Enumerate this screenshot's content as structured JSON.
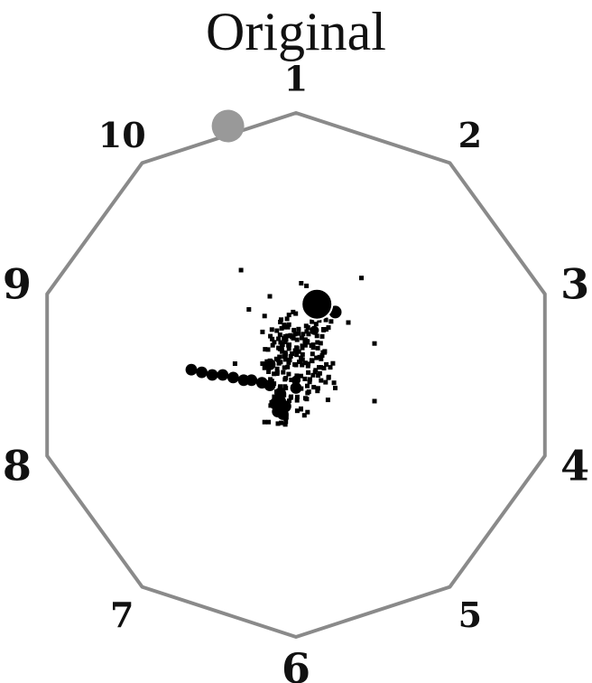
{
  "chart_data": {
    "type": "scatter",
    "title": "Original",
    "anchors": [
      "1",
      "2",
      "3",
      "4",
      "5",
      "6",
      "7",
      "8",
      "9",
      "10"
    ],
    "colors": {
      "outline": "#8a8a8a",
      "points": "#000000",
      "centroid": "#000000",
      "highlight": "#999999"
    },
    "highlight": {
      "x": -0.26,
      "y": 0.95
    },
    "centroid": {
      "x": 0.08,
      "y": 0.27
    },
    "blobs": [
      {
        "x": -0.4,
        "y": 0.02,
        "r": 2
      },
      {
        "x": -0.36,
        "y": 0.01,
        "r": 2
      },
      {
        "x": -0.32,
        "y": 0.0,
        "r": 2
      },
      {
        "x": -0.28,
        "y": 0.0,
        "r": 2
      },
      {
        "x": -0.24,
        "y": -0.01,
        "r": 2
      },
      {
        "x": -0.2,
        "y": -0.02,
        "r": 2
      },
      {
        "x": -0.17,
        "y": -0.02,
        "r": 2
      },
      {
        "x": -0.13,
        "y": -0.03,
        "r": 2
      },
      {
        "x": -0.1,
        "y": -0.04,
        "r": 2
      },
      {
        "x": -0.1,
        "y": 0.04,
        "r": 2
      },
      {
        "x": -0.06,
        "y": -0.07,
        "r": 2
      },
      {
        "x": -0.06,
        "y": -0.1,
        "r": 2
      },
      {
        "x": -0.08,
        "y": -0.11,
        "r": 2
      },
      {
        "x": -0.04,
        "y": -0.12,
        "r": 2
      },
      {
        "x": -0.07,
        "y": -0.14,
        "r": 2
      },
      {
        "x": -0.05,
        "y": -0.15,
        "r": 2
      },
      {
        "x": 0.0,
        "y": -0.05,
        "r": 2
      },
      {
        "x": 0.0,
        "y": -0.02,
        "r": 1.6
      },
      {
        "x": 0.07,
        "y": 0.17,
        "r": 1.6
      },
      {
        "x": 0.15,
        "y": 0.24,
        "r": 2.2
      }
    ],
    "points": [
      {
        "x": -0.233,
        "y": 0.043
      },
      {
        "x": -0.128,
        "y": 0.164
      },
      {
        "x": -0.12,
        "y": 0.225
      },
      {
        "x": -0.092,
        "y": 0.04
      },
      {
        "x": -0.105,
        "y": -0.18
      },
      {
        "x": -0.12,
        "y": -0.18
      },
      {
        "x": -0.093,
        "y": -0.105
      },
      {
        "x": -0.007,
        "y": -0.02
      },
      {
        "x": 0.019,
        "y": -0.131
      },
      {
        "x": 0.053,
        "y": -0.017
      },
      {
        "x": 0.002,
        "y": 0.077
      },
      {
        "x": -0.027,
        "y": 0.1
      },
      {
        "x": -0.027,
        "y": 0.192
      },
      {
        "x": 0.1,
        "y": 0.147
      },
      {
        "x": 0.059,
        "y": 0.112
      },
      {
        "x": 0.0,
        "y": 0.038
      },
      {
        "x": -0.057,
        "y": -0.074
      },
      {
        "x": -0.06,
        "y": -0.121
      },
      {
        "x": -0.045,
        "y": 0.182
      },
      {
        "x": -0.098,
        "y": 0.148
      },
      {
        "x": -0.072,
        "y": 0.023
      },
      {
        "x": -0.075,
        "y": 0.061
      },
      {
        "x": -0.096,
        "y": -0.025
      },
      {
        "x": 0.024,
        "y": 0.108
      },
      {
        "x": -0.04,
        "y": 0.059
      },
      {
        "x": 0.068,
        "y": -0.047
      },
      {
        "x": 0.004,
        "y": -0.097
      },
      {
        "x": -0.019,
        "y": -0.083
      },
      {
        "x": 0.077,
        "y": 0.194
      },
      {
        "x": -0.031,
        "y": 0.182
      },
      {
        "x": -0.097,
        "y": -0.117
      },
      {
        "x": 0.122,
        "y": -0.095
      },
      {
        "x": -0.032,
        "y": 0.03
      },
      {
        "x": 0.065,
        "y": 0.115
      },
      {
        "x": -0.049,
        "y": 0.01
      },
      {
        "x": -0.029,
        "y": 0.113
      },
      {
        "x": 0.141,
        "y": 0.044
      },
      {
        "x": 0.041,
        "y": 0.166
      },
      {
        "x": -0.02,
        "y": 0.071
      },
      {
        "x": 0.037,
        "y": 0.127
      },
      {
        "x": 0.032,
        "y": -0.154
      },
      {
        "x": -0.059,
        "y": 0.124
      },
      {
        "x": -0.041,
        "y": -0.189
      },
      {
        "x": 0.109,
        "y": 0.086
      },
      {
        "x": 0.054,
        "y": 0.244
      },
      {
        "x": -0.039,
        "y": 0.185
      },
      {
        "x": 0.024,
        "y": 0.103
      },
      {
        "x": -0.099,
        "y": 0.054
      },
      {
        "x": 0.046,
        "y": 0.181
      },
      {
        "x": 0.124,
        "y": -0.011
      },
      {
        "x": -0.051,
        "y": 0.115
      },
      {
        "x": 0.036,
        "y": 0.113
      },
      {
        "x": -0.068,
        "y": 0.057
      },
      {
        "x": 0.082,
        "y": -0.061
      },
      {
        "x": -0.09,
        "y": -0.112
      },
      {
        "x": -0.003,
        "y": 0.156
      },
      {
        "x": 0.005,
        "y": -0.084
      },
      {
        "x": -0.026,
        "y": 0.115
      },
      {
        "x": 0.041,
        "y": -0.092
      },
      {
        "x": 0.061,
        "y": 0.203
      },
      {
        "x": -0.028,
        "y": 0.047
      },
      {
        "x": -0.05,
        "y": -0.066
      },
      {
        "x": -0.052,
        "y": -0.114
      },
      {
        "x": 0.107,
        "y": 0.026
      },
      {
        "x": 0.019,
        "y": 0.065
      },
      {
        "x": 0.003,
        "y": -0.003
      },
      {
        "x": -0.01,
        "y": 0.14
      },
      {
        "x": -0.053,
        "y": 0.089
      },
      {
        "x": -0.071,
        "y": 0.01
      },
      {
        "x": -0.098,
        "y": -0.017
      },
      {
        "x": -0.054,
        "y": 0.097
      },
      {
        "x": 0.004,
        "y": 0.101
      },
      {
        "x": 0.078,
        "y": 0.065
      },
      {
        "x": 0.085,
        "y": -0.002
      },
      {
        "x": -0.015,
        "y": 0.145
      },
      {
        "x": 0.023,
        "y": 0.038
      },
      {
        "x": -0.118,
        "y": 0.098
      },
      {
        "x": 0.044,
        "y": -0.069
      },
      {
        "x": -0.061,
        "y": -0.049
      },
      {
        "x": -0.06,
        "y": 0.202
      },
      {
        "x": 0.096,
        "y": 0.061
      },
      {
        "x": 0.06,
        "y": 0.056
      },
      {
        "x": -0.039,
        "y": -0.012
      },
      {
        "x": 0.002,
        "y": 0.104
      },
      {
        "x": -0.061,
        "y": 0.099
      },
      {
        "x": -0.031,
        "y": 0.186
      },
      {
        "x": 0.039,
        "y": 0.187
      },
      {
        "x": -0.008,
        "y": 0.171
      },
      {
        "x": 0.049,
        "y": -0.064
      },
      {
        "x": -0.073,
        "y": 0.169
      },
      {
        "x": 0.046,
        "y": 0.034
      },
      {
        "x": -0.011,
        "y": -0.047
      },
      {
        "x": 0.042,
        "y": 0.129
      },
      {
        "x": -0.041,
        "y": 0.071
      },
      {
        "x": -0.072,
        "y": -0.076
      },
      {
        "x": -0.105,
        "y": 0.012
      },
      {
        "x": 0.044,
        "y": 0.127
      },
      {
        "x": -0.038,
        "y": 0.134
      },
      {
        "x": 0.005,
        "y": -0.137
      },
      {
        "x": -0.032,
        "y": 0.149
      },
      {
        "x": 0.019,
        "y": -0.004
      },
      {
        "x": 0.068,
        "y": 0.221
      },
      {
        "x": -0.034,
        "y": 0.214
      },
      {
        "x": 0.106,
        "y": 0.171
      },
      {
        "x": 0.063,
        "y": 0.08
      },
      {
        "x": 0.036,
        "y": 0.135
      },
      {
        "x": -0.018,
        "y": -0.019
      },
      {
        "x": -0.083,
        "y": 0.125
      },
      {
        "x": 0.125,
        "y": -0.008
      },
      {
        "x": -0.027,
        "y": 0.229
      },
      {
        "x": -0.046,
        "y": 0.14
      },
      {
        "x": -0.04,
        "y": 0.079
      },
      {
        "x": -0.028,
        "y": 0.003
      },
      {
        "x": 0.114,
        "y": 0.21
      },
      {
        "x": 0.094,
        "y": 0.121
      },
      {
        "x": 0.018,
        "y": 0.05
      },
      {
        "x": -0.037,
        "y": 0.184
      },
      {
        "x": 0.089,
        "y": 0.208
      },
      {
        "x": -0.042,
        "y": 0.126
      },
      {
        "x": -0.065,
        "y": 0.044
      },
      {
        "x": -0.011,
        "y": 0.24
      },
      {
        "x": -0.026,
        "y": -0.099
      },
      {
        "x": 0.066,
        "y": 0.105
      },
      {
        "x": -0.128,
        "y": 0.043
      },
      {
        "x": 0.047,
        "y": 0.009
      },
      {
        "x": -0.039,
        "y": -0.05
      },
      {
        "x": -0.065,
        "y": -0.117
      },
      {
        "x": -0.045,
        "y": 0.191
      },
      {
        "x": 0.062,
        "y": 0.053
      },
      {
        "x": 0.095,
        "y": 0.029
      },
      {
        "x": 0.052,
        "y": -0.027
      },
      {
        "x": 0.116,
        "y": 0.174
      },
      {
        "x": -0.039,
        "y": -0.179
      },
      {
        "x": -0.072,
        "y": -0.087
      },
      {
        "x": 0.034,
        "y": 0.129
      },
      {
        "x": 0.124,
        "y": 0.181
      },
      {
        "x": -0.059,
        "y": 0.049
      },
      {
        "x": 0.047,
        "y": 0.042
      },
      {
        "x": -0.057,
        "y": 0.211
      },
      {
        "x": -0.083,
        "y": -0.083
      },
      {
        "x": -0.041,
        "y": 0.147
      },
      {
        "x": 0.036,
        "y": 0.046
      },
      {
        "x": 0.088,
        "y": 0.029
      },
      {
        "x": -0.021,
        "y": 0.151
      },
      {
        "x": 0.073,
        "y": 0.011
      },
      {
        "x": 0.022,
        "y": 0.141
      },
      {
        "x": 0.043,
        "y": -0.042
      },
      {
        "x": -0.005,
        "y": 0.04
      },
      {
        "x": 0.043,
        "y": 0.124
      },
      {
        "x": -0.067,
        "y": 0.103
      },
      {
        "x": -0.057,
        "y": -0.183
      },
      {
        "x": -0.06,
        "y": -0.044
      },
      {
        "x": 0.065,
        "y": -0.001
      },
      {
        "x": -0.061,
        "y": 0.153
      },
      {
        "x": 0.009,
        "y": 0.158
      },
      {
        "x": -0.046,
        "y": 0.07
      },
      {
        "x": 0.004,
        "y": 0.134
      },
      {
        "x": 0.103,
        "y": 0.086
      },
      {
        "x": -0.107,
        "y": 0.097
      },
      {
        "x": 0.084,
        "y": -0.051
      },
      {
        "x": 0.096,
        "y": -0.021
      },
      {
        "x": -0.074,
        "y": -0.064
      },
      {
        "x": -0.055,
        "y": 0.178
      },
      {
        "x": -0.063,
        "y": 0.069
      },
      {
        "x": 0.083,
        "y": 0.102
      },
      {
        "x": 0.024,
        "y": 0.111
      },
      {
        "x": -0.02,
        "y": -0.087
      },
      {
        "x": 0.012,
        "y": 0.05
      },
      {
        "x": -0.111,
        "y": 0.051
      },
      {
        "x": -0.042,
        "y": -0.044
      },
      {
        "x": -0.12,
        "y": 0.027
      },
      {
        "x": 0.048,
        "y": 0.156
      },
      {
        "x": 0.044,
        "y": -0.142
      },
      {
        "x": -0.044,
        "y": 0.028
      },
      {
        "x": -0.099,
        "y": 0.032
      },
      {
        "x": -0.053,
        "y": 0.115
      },
      {
        "x": -0.091,
        "y": 0.137
      },
      {
        "x": 0.011,
        "y": 0.089
      },
      {
        "x": 0.075,
        "y": 0.018
      },
      {
        "x": -0.001,
        "y": 0.234
      },
      {
        "x": 0.11,
        "y": 0.09
      },
      {
        "x": 0.145,
        "y": -0.03
      },
      {
        "x": -0.015,
        "y": 0.081
      },
      {
        "x": 0.082,
        "y": 0.124
      },
      {
        "x": 0.036,
        "y": -0.089
      },
      {
        "x": 0.068,
        "y": 0.233
      },
      {
        "x": 0.1,
        "y": 0.074
      },
      {
        "x": 0.09,
        "y": 0.068
      },
      {
        "x": 0.131,
        "y": 0.029
      },
      {
        "x": -0.089,
        "y": 0.043
      },
      {
        "x": 0.025,
        "y": 0.078
      },
      {
        "x": -0.092,
        "y": 0.173
      },
      {
        "x": -0.003,
        "y": 0.093
      },
      {
        "x": -0.042,
        "y": -0.017
      },
      {
        "x": -0.069,
        "y": -0.186
      },
      {
        "x": 0.027,
        "y": 0.156
      },
      {
        "x": -0.041,
        "y": 0.085
      },
      {
        "x": 0.134,
        "y": 0.204
      },
      {
        "x": -0.084,
        "y": 0.004
      },
      {
        "x": -0.087,
        "y": -0.108
      },
      {
        "x": -0.089,
        "y": 0.113
      },
      {
        "x": 0.034,
        "y": -0.015
      },
      {
        "x": 0.113,
        "y": -0.028
      },
      {
        "x": -0.072,
        "y": 0.005
      },
      {
        "x": 0.091,
        "y": 0.006
      },
      {
        "x": -0.037,
        "y": -0.162
      },
      {
        "x": 0.01,
        "y": 0.175
      },
      {
        "x": 0.116,
        "y": 0.04
      },
      {
        "x": -0.097,
        "y": 0.039
      },
      {
        "x": -0.024,
        "y": 0.057
      },
      {
        "x": -0.084,
        "y": -0.033
      },
      {
        "x": -0.046,
        "y": -0.077
      },
      {
        "x": -0.067,
        "y": 0.138
      },
      {
        "x": 0.019,
        "y": -0.129
      },
      {
        "x": -0.055,
        "y": 0.102
      },
      {
        "x": 0.02,
        "y": -0.052
      },
      {
        "x": 0.067,
        "y": 0.165
      },
      {
        "x": 0.105,
        "y": 0.174
      },
      {
        "x": 0.08,
        "y": 0.149
      },
      {
        "x": -0.092,
        "y": -0.023
      },
      {
        "x": 0.025,
        "y": 0.059
      },
      {
        "x": -0.21,
        "y": 0.4
      },
      {
        "x": 0.02,
        "y": 0.35
      },
      {
        "x": 0.25,
        "y": 0.37
      },
      {
        "x": 0.3,
        "y": 0.12
      },
      {
        "x": 0.3,
        "y": -0.1
      },
      {
        "x": 0.15,
        "y": -0.05
      },
      {
        "x": -0.1,
        "y": 0.3
      },
      {
        "x": 0.04,
        "y": 0.34
      },
      {
        "x": 0.2,
        "y": 0.2
      },
      {
        "x": -0.18,
        "y": 0.25
      }
    ]
  }
}
